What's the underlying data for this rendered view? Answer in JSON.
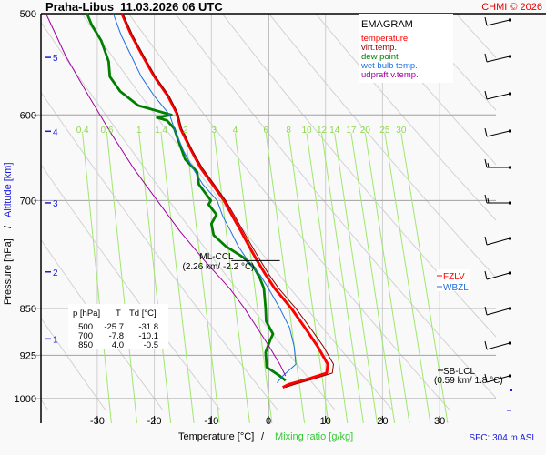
{
  "chart_data": {
    "type": "line",
    "subtype": "emagram",
    "title": "Praha-Libus",
    "datetime": "11.03.2026 06 UTC",
    "copyright": "CHMI © 2026",
    "legend_title": "EMAGRAM",
    "legend": [
      {
        "name": "temperature",
        "color": "#ff0000"
      },
      {
        "name": "virt.temp.",
        "color": "#8b0000"
      },
      {
        "name": "dew point",
        "color": "#008000"
      },
      {
        "name": "wet bulb temp.",
        "color": "#1e6fe0"
      },
      {
        "name": "udpraft v.temp.",
        "color": "#a000a0"
      }
    ],
    "xlabel": "Temperature [°C]",
    "xlabel_sep": "/",
    "xlabel2": "Mixing ratio [g/kg]",
    "ylabel": "Pressure [hPa]",
    "ylabel_sep": "/",
    "ylabel2": "Altitude [km]",
    "xlim": [
      -38,
      40
    ],
    "ylim_hpa": [
      1000,
      500
    ],
    "x_ticks": [
      -30,
      -20,
      -10,
      0,
      10,
      20,
      30
    ],
    "pressure_ticks": [
      500,
      600,
      700,
      850,
      925,
      1000
    ],
    "altitude_ticks": [
      {
        "km": 5,
        "hpa": 541
      },
      {
        "km": 4,
        "hpa": 618
      },
      {
        "km": 3,
        "hpa": 703
      },
      {
        "km": 2,
        "hpa": 796
      },
      {
        "km": 1,
        "hpa": 898
      }
    ],
    "mixing_ratio_labels": [
      "0.4",
      "0.6",
      "1",
      "1.4",
      "2",
      "3",
      "4",
      "6",
      "8",
      "10",
      "12",
      "14",
      "17",
      "20",
      "25",
      "30"
    ],
    "mixing_ratio_values": [
      0.4,
      0.6,
      1,
      1.4,
      2,
      3,
      4,
      6,
      8,
      10,
      12,
      14,
      17,
      20,
      25,
      30
    ],
    "series": [
      {
        "name": "temperature",
        "points": [
          [
            500,
            -25.7
          ],
          [
            520,
            -24.0
          ],
          [
            540,
            -22.0
          ],
          [
            560,
            -20.0
          ],
          [
            580,
            -17.6
          ],
          [
            598,
            -16.1
          ],
          [
            602,
            -15.9
          ],
          [
            615,
            -15.4
          ],
          [
            640,
            -13.5
          ],
          [
            660,
            -11.9
          ],
          [
            680,
            -9.8
          ],
          [
            700,
            -7.8
          ],
          [
            720,
            -6.3
          ],
          [
            740,
            -4.8
          ],
          [
            760,
            -3.4
          ],
          [
            780,
            -2.0
          ],
          [
            800,
            -0.5
          ],
          [
            820,
            1.1
          ],
          [
            850,
            4.0
          ],
          [
            880,
            6.4
          ],
          [
            910,
            8.6
          ],
          [
            940,
            10.4
          ],
          [
            955,
            10.2
          ],
          [
            965,
            7.0
          ],
          [
            975,
            3.5
          ],
          [
            980,
            2.5
          ]
        ]
      },
      {
        "name": "virt.temp.",
        "points": [
          [
            500,
            -25.5
          ],
          [
            520,
            -23.8
          ],
          [
            540,
            -21.8
          ],
          [
            560,
            -19.8
          ],
          [
            580,
            -17.4
          ],
          [
            598,
            -15.9
          ],
          [
            615,
            -15.2
          ],
          [
            640,
            -13.3
          ],
          [
            660,
            -11.6
          ],
          [
            680,
            -9.5
          ],
          [
            700,
            -7.5
          ],
          [
            720,
            -5.9
          ],
          [
            740,
            -4.4
          ],
          [
            760,
            -2.9
          ],
          [
            780,
            -1.4
          ],
          [
            800,
            0.1
          ],
          [
            820,
            1.8
          ],
          [
            850,
            4.8
          ],
          [
            880,
            7.3
          ],
          [
            910,
            9.6
          ],
          [
            940,
            11.4
          ],
          [
            955,
            11.2
          ],
          [
            965,
            8.0
          ],
          [
            975,
            4.5
          ],
          [
            980,
            3.0
          ]
        ]
      },
      {
        "name": "dew point",
        "points": [
          [
            500,
            -31.8
          ],
          [
            510,
            -31.0
          ],
          [
            525,
            -29.3
          ],
          [
            545,
            -28.0
          ],
          [
            560,
            -27.8
          ],
          [
            575,
            -26.0
          ],
          [
            590,
            -22.8
          ],
          [
            600,
            -17.0
          ],
          [
            603,
            -19.5
          ],
          [
            606,
            -17.8
          ],
          [
            615,
            -16.5
          ],
          [
            630,
            -15.7
          ],
          [
            650,
            -14.6
          ],
          [
            665,
            -12.5
          ],
          [
            680,
            -12.2
          ],
          [
            700,
            -10.1
          ],
          [
            705,
            -10.5
          ],
          [
            718,
            -9.1
          ],
          [
            730,
            -10.0
          ],
          [
            745,
            -9.6
          ],
          [
            760,
            -7.5
          ],
          [
            775,
            -4.5
          ],
          [
            790,
            -2.5
          ],
          [
            805,
            -1.5
          ],
          [
            820,
            -0.8
          ],
          [
            850,
            -0.5
          ],
          [
            870,
            -0.4
          ],
          [
            890,
            0.8
          ],
          [
            900,
            0.3
          ],
          [
            920,
            -0.5
          ],
          [
            945,
            -0.3
          ],
          [
            960,
            2.0
          ],
          [
            968,
            3.0
          ]
        ]
      },
      {
        "name": "wet bulb temp.",
        "points": [
          [
            500,
            -27.2
          ],
          [
            520,
            -25.8
          ],
          [
            540,
            -24.0
          ],
          [
            560,
            -22.3
          ],
          [
            580,
            -20.0
          ],
          [
            600,
            -17.3
          ],
          [
            615,
            -16.5
          ],
          [
            640,
            -14.9
          ],
          [
            660,
            -13.3
          ],
          [
            680,
            -11.5
          ],
          [
            700,
            -9.0
          ],
          [
            720,
            -8.0
          ],
          [
            740,
            -6.6
          ],
          [
            760,
            -5.3
          ],
          [
            780,
            -3.6
          ],
          [
            800,
            -1.5
          ],
          [
            820,
            0.0
          ],
          [
            850,
            2.0
          ],
          [
            880,
            3.7
          ],
          [
            910,
            4.5
          ],
          [
            940,
            4.8
          ],
          [
            960,
            2.5
          ],
          [
            972,
            1.5
          ]
        ]
      },
      {
        "name": "udpraft v.temp.",
        "points": [
          [
            500,
            -39.0
          ],
          [
            540,
            -35.5
          ],
          [
            580,
            -31.5
          ],
          [
            620,
            -27.6
          ],
          [
            660,
            -23.7
          ],
          [
            700,
            -19.5
          ],
          [
            740,
            -15.5
          ],
          [
            780,
            -11.2
          ],
          [
            820,
            -6.8
          ],
          [
            850,
            -4.2
          ],
          [
            880,
            -2.0
          ],
          [
            910,
            0.1
          ],
          [
            940,
            2.0
          ],
          [
            960,
            3.0
          ]
        ]
      }
    ],
    "wind_barbs_hpa": [
      500,
      540,
      580,
      620,
      660,
      700,
      740,
      780,
      820,
      860,
      900,
      940
    ],
    "annotations": [
      {
        "label": "ML-CCL",
        "detail": "(2.26 km/ -2.2 °C)",
        "hpa": 780,
        "t": -2.2
      },
      {
        "label": "SB-LCL",
        "detail": "(0.59 km/ 1.8 °C)",
        "hpa": 940,
        "t": 1.8
      },
      {
        "label": "FZLV",
        "color": "#ff0000",
        "hpa": 796
      },
      {
        "label": "WBZL",
        "color": "#1e6fe0",
        "hpa": 820
      }
    ],
    "table": {
      "headers": [
        "p [hPa]",
        "T",
        "Td [°C]"
      ],
      "rows": [
        [
          "500",
          "-25.7",
          "-31.8"
        ],
        [
          "700",
          "-7.8",
          "-10.1"
        ],
        [
          "850",
          "4.0",
          "-0.5"
        ]
      ]
    },
    "surface": "SFC: 304 m ASL"
  }
}
